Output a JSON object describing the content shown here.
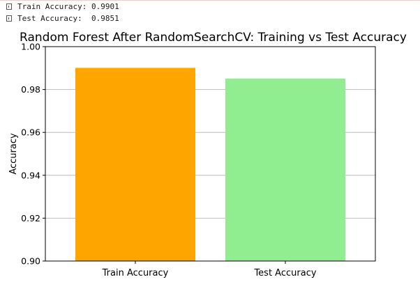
{
  "console": {
    "lines": [
      {
        "icon": "unrecognized-glyph-icon",
        "text": "Train Accuracy: 0.9901"
      },
      {
        "icon": "unrecognized-glyph-icon",
        "text": "Test Accuracy:  0.9851"
      }
    ]
  },
  "chart_data": {
    "type": "bar",
    "title": "Random Forest After RandomSearchCV: Training vs Test Accuracy",
    "xlabel": "",
    "ylabel": "Accuracy",
    "categories": [
      "Train Accuracy",
      "Test Accuracy"
    ],
    "values": [
      0.9901,
      0.9851
    ],
    "colors": [
      "#ffa500",
      "#90ee90"
    ],
    "ylim": [
      0.9,
      1.0
    ],
    "yticks": [
      0.9,
      0.92,
      0.94,
      0.96,
      0.98,
      1.0
    ],
    "ytick_labels": [
      "0.90",
      "0.92",
      "0.94",
      "0.96",
      "0.98",
      "1.00"
    ],
    "grid": "y-axis",
    "legend": "none"
  }
}
